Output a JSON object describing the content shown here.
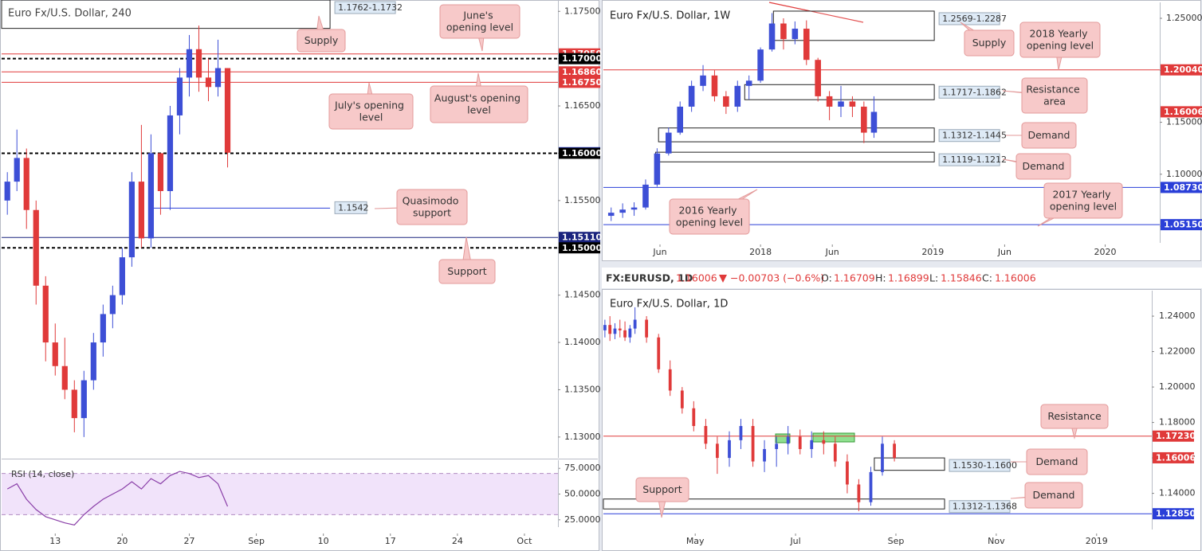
{
  "chart_data": [
    {
      "type": "candlestick",
      "title": "Euro Fx/U.S. Dollar, 240",
      "up_color": "#3d4fd6",
      "down_color": "#e03a3a",
      "x": [
        8,
        9,
        10,
        11,
        12,
        13,
        14,
        15,
        16,
        17,
        18,
        19,
        20,
        21,
        22,
        23,
        24,
        25,
        26,
        27,
        28,
        29,
        30,
        31
      ],
      "open": [
        1.155,
        1.157,
        1.1595,
        1.154,
        1.146,
        1.14,
        1.1375,
        1.135,
        1.132,
        1.136,
        1.14,
        1.143,
        1.145,
        1.149,
        1.157,
        1.151,
        1.16,
        1.156,
        1.164,
        1.168,
        1.171,
        1.168,
        1.167,
        1.169
      ],
      "high": [
        1.158,
        1.1625,
        1.1605,
        1.155,
        1.147,
        1.142,
        1.1405,
        1.136,
        1.137,
        1.141,
        1.144,
        1.146,
        1.15,
        1.158,
        1.163,
        1.162,
        1.16,
        1.165,
        1.169,
        1.1725,
        1.1735,
        1.17,
        1.172,
        1.169
      ],
      "low": [
        1.1535,
        1.156,
        1.152,
        1.144,
        1.138,
        1.1365,
        1.134,
        1.1305,
        1.13,
        1.135,
        1.1385,
        1.1415,
        1.144,
        1.148,
        1.15,
        1.15,
        1.1535,
        1.154,
        1.162,
        1.166,
        1.1665,
        1.1655,
        1.166,
        1.1585
      ],
      "close": [
        1.157,
        1.1595,
        1.154,
        1.146,
        1.14,
        1.1375,
        1.135,
        1.132,
        1.136,
        1.14,
        1.143,
        1.145,
        1.149,
        1.157,
        1.151,
        1.16,
        1.156,
        1.164,
        1.168,
        1.171,
        1.168,
        1.167,
        1.169,
        1.16006
      ],
      "xlim": [
        7.4,
        65.5
      ],
      "xticks": [
        13,
        20,
        27,
        {
          "value": 34,
          "label": "Sep"
        },
        {
          "value": 41,
          "label": "10"
        },
        {
          "value": 48,
          "label": "17"
        },
        {
          "value": 55,
          "label": "24"
        },
        {
          "value": 62,
          "label": "Oct"
        }
      ],
      "ylim": [
        1.1278,
        1.1762
      ],
      "yticks": [
        {
          "value": 1.13,
          "label": "1.13000"
        },
        {
          "value": 1.135,
          "label": "1.13500"
        },
        {
          "value": 1.14,
          "label": "1.14000"
        },
        {
          "value": 1.145,
          "label": "1.14500"
        },
        {
          "value": 1.15,
          "label": "1.15000"
        },
        {
          "value": 1.155,
          "label": "1.15500"
        },
        {
          "value": 1.16,
          "label": "1.16000"
        },
        {
          "value": 1.165,
          "label": "1.16500"
        },
        {
          "value": 1.17,
          "label": "1.17000"
        },
        {
          "value": 1.175,
          "label": "1.17500"
        }
      ],
      "levels": [
        {
          "value": 1.1705,
          "label": "1.17050",
          "color": "#e03a3a"
        },
        {
          "value": 1.17,
          "label": "1.17000",
          "color": "#000000",
          "dashed": true
        },
        {
          "value": 1.1686,
          "label": "1.16860",
          "color": "#e03a3a"
        },
        {
          "value": 1.1675,
          "label": "1.16750",
          "color": "#e03a3a"
        },
        {
          "value": 1.16006,
          "label": "1.16006",
          "color": "#2a3fd8",
          "line": false
        },
        {
          "value": 1.16,
          "label": "1.16000",
          "color": "#000000",
          "dashed": true
        },
        {
          "value": 1.1511,
          "label": "1.15110",
          "color": "#1a237e"
        },
        {
          "value": 1.15,
          "label": "1.15000",
          "color": "#000000",
          "dashed": true
        }
      ],
      "zones": [
        {
          "label": "1.1762-1.1732",
          "top": 1.1762,
          "bottom": 1.1732,
          "x": [
            7.4,
            41.7
          ]
        }
      ],
      "rays": [
        {
          "value": 1.1542,
          "label": "1.1542",
          "x": [
            23.2,
            41.7
          ],
          "color": "#2a3fd8"
        }
      ],
      "callouts": [
        "Supply",
        "June's opening level",
        "July's opening level",
        "August's opening level",
        "Quasimodo support",
        "Support"
      ],
      "rsi": {
        "title": "RSI (14, close)",
        "color": "#8a3fa8",
        "values": [
          55,
          60,
          45,
          35,
          28,
          25,
          22,
          20,
          30,
          38,
          45,
          50,
          55,
          62,
          55,
          65,
          60,
          68,
          72,
          70,
          66,
          68,
          60,
          38
        ],
        "ylim": [
          17.9,
          82.9
        ],
        "band": [
          30,
          70
        ],
        "yticks": [
          {
            "value": 25,
            "label": "25.0000"
          },
          {
            "value": 50,
            "label": "50.0000"
          },
          {
            "value": 75,
            "label": "75.0000"
          }
        ]
      }
    },
    {
      "type": "candlestick",
      "title": "Euro Fx/U.S. Dollar, 1W",
      "up_color": "#3d4fd6",
      "down_color": "#e03a3a",
      "x": [
        1.6,
        2.4,
        3.2,
        4.0,
        4.8,
        5.6,
        6.4,
        7.2,
        8.0,
        8.8,
        9.6,
        10.4,
        11.2,
        12.0,
        12.8,
        13.6,
        14.4,
        15.2,
        16.0,
        16.8,
        17.6,
        18.4,
        19.2,
        19.9
      ],
      "open": [
        1.06,
        1.063,
        1.066,
        1.068,
        1.09,
        1.12,
        1.14,
        1.165,
        1.185,
        1.195,
        1.175,
        1.165,
        1.185,
        1.19,
        1.22,
        1.245,
        1.23,
        1.24,
        1.21,
        1.175,
        1.165,
        1.17,
        1.165,
        1.14
      ],
      "high": [
        1.068,
        1.072,
        1.073,
        1.095,
        1.125,
        1.145,
        1.17,
        1.19,
        1.205,
        1.2,
        1.18,
        1.19,
        1.195,
        1.222,
        1.255,
        1.25,
        1.247,
        1.248,
        1.212,
        1.18,
        1.185,
        1.175,
        1.17,
        1.175
      ],
      "low": [
        1.055,
        1.058,
        1.06,
        1.066,
        1.088,
        1.118,
        1.138,
        1.16,
        1.18,
        1.17,
        1.158,
        1.16,
        1.172,
        1.188,
        1.218,
        1.22,
        1.225,
        1.205,
        1.17,
        1.152,
        1.155,
        1.155,
        1.13,
        1.135
      ],
      "close": [
        1.063,
        1.066,
        1.068,
        1.09,
        1.12,
        1.14,
        1.165,
        1.185,
        1.195,
        1.175,
        1.165,
        1.185,
        1.19,
        1.22,
        1.245,
        1.23,
        1.24,
        1.21,
        1.175,
        1.165,
        1.17,
        1.165,
        1.14,
        1.16
      ],
      "xlim": [
        1.06,
        39.8
      ],
      "xticks": [
        {
          "value": 5,
          "label": "Jun"
        },
        {
          "value": 12,
          "label": "2018"
        },
        {
          "value": 17,
          "label": "Jun"
        },
        {
          "value": 24,
          "label": "2019"
        },
        {
          "value": 29,
          "label": "Jun"
        },
        {
          "value": 36,
          "label": "2020"
        }
      ],
      "ylim": [
        1.034,
        1.2653
      ],
      "yticks": [
        {
          "value": 1.05,
          "label": "1.05000"
        },
        {
          "value": 1.1,
          "label": "1.10000"
        },
        {
          "value": 1.15,
          "label": "1.15000"
        },
        {
          "value": 1.2,
          "label": "1.20000"
        },
        {
          "value": 1.25,
          "label": "1.25000"
        }
      ],
      "levels": [
        {
          "value": 1.2004,
          "label": "1.20040",
          "color": "#e03a3a"
        },
        {
          "value": 1.16006,
          "label": "1.16006",
          "color": "#e03a3a",
          "line": false
        },
        {
          "value": 1.0873,
          "label": "1.08730",
          "color": "#2a3fd8"
        },
        {
          "value": 1.0515,
          "label": "1.05150",
          "color": "#2a3fd8"
        }
      ],
      "zones": [
        {
          "label": "1.2569-1.2287",
          "top": 1.2569,
          "bottom": 1.2287,
          "x": [
            12.9,
            24.1
          ]
        },
        {
          "label": "1.1717-1.1862",
          "top": 1.1862,
          "bottom": 1.1717,
          "x": [
            10.9,
            24.1
          ]
        },
        {
          "label": "1.1312-1.1445",
          "top": 1.1445,
          "bottom": 1.1312,
          "x": [
            4.9,
            24.1
          ]
        },
        {
          "label": "1.1119-1.1212",
          "top": 1.1212,
          "bottom": 1.1119,
          "x": [
            4.7,
            24.1
          ]
        }
      ],
      "callouts": [
        "Supply",
        "2018 Yearly opening level",
        "Resistance area",
        "Demand",
        "Demand",
        "2016 Yearly opening level",
        "2017 Yearly opening level"
      ]
    },
    {
      "type": "candlestick",
      "title": "Euro Fx/U.S. Dollar, 1D",
      "up_color": "#3d4fd6",
      "down_color": "#e03a3a",
      "x": [
        2.2,
        2.3,
        2.4,
        2.5,
        2.6,
        2.7,
        2.8,
        3.03,
        3.27,
        3.5,
        3.74,
        3.97,
        4.21,
        4.44,
        4.68,
        4.91,
        5.15,
        5.38,
        5.62,
        5.85,
        6.09,
        6.32,
        6.56,
        6.79,
        7.03,
        7.26,
        7.5,
        7.73,
        7.97
      ],
      "open": [
        1.232,
        1.235,
        1.23,
        1.233,
        1.232,
        1.228,
        1.233,
        1.238,
        1.228,
        1.21,
        1.198,
        1.188,
        1.178,
        1.168,
        1.16,
        1.17,
        1.178,
        1.158,
        1.165,
        1.168,
        1.172,
        1.165,
        1.17,
        1.168,
        1.158,
        1.145,
        1.135,
        1.152,
        1.168
      ],
      "high": [
        1.238,
        1.24,
        1.236,
        1.238,
        1.237,
        1.235,
        1.245,
        1.24,
        1.23,
        1.215,
        1.2,
        1.192,
        1.182,
        1.172,
        1.175,
        1.182,
        1.182,
        1.17,
        1.172,
        1.178,
        1.176,
        1.175,
        1.175,
        1.172,
        1.162,
        1.148,
        1.155,
        1.172,
        1.17
      ],
      "low": [
        1.228,
        1.226,
        1.227,
        1.228,
        1.226,
        1.225,
        1.23,
        1.225,
        1.208,
        1.195,
        1.185,
        1.175,
        1.165,
        1.151,
        1.155,
        1.165,
        1.155,
        1.152,
        1.155,
        1.162,
        1.162,
        1.16,
        1.162,
        1.155,
        1.14,
        1.13,
        1.133,
        1.15,
        1.158
      ],
      "close": [
        1.235,
        1.23,
        1.233,
        1.232,
        1.228,
        1.233,
        1.238,
        1.228,
        1.21,
        1.198,
        1.188,
        1.178,
        1.168,
        1.16,
        1.17,
        1.178,
        1.158,
        1.165,
        1.168,
        1.172,
        1.165,
        1.17,
        1.168,
        1.158,
        1.145,
        1.135,
        1.152,
        1.168,
        1.16
      ],
      "xlim": [
        2.17,
        13.1
      ],
      "xticks": [
        {
          "value": 4,
          "label": "May"
        },
        {
          "value": 6,
          "label": "Jul"
        },
        {
          "value": 8,
          "label": "Sep"
        },
        {
          "value": 10,
          "label": "Nov"
        },
        {
          "value": 12,
          "label": "2019"
        }
      ],
      "ylim": [
        1.1196,
        1.2544
      ],
      "yticks": [
        {
          "value": 1.14,
          "label": "1.14000"
        },
        {
          "value": 1.16,
          "label": "1.16000"
        },
        {
          "value": 1.18,
          "label": "1.18000"
        },
        {
          "value": 1.2,
          "label": "1.20000"
        },
        {
          "value": 1.22,
          "label": "1.22000"
        },
        {
          "value": 1.24,
          "label": "1.24000"
        }
      ],
      "levels": [
        {
          "value": 1.1723,
          "label": "1.17230",
          "color": "#e03a3a"
        },
        {
          "value": 1.16006,
          "label": "1.16006",
          "color": "#e03a3a",
          "line": false
        },
        {
          "value": 1.1285,
          "label": "1.12850",
          "color": "#2a3fd8"
        }
      ],
      "zones": [
        {
          "label": "1.1530-1.1600",
          "top": 1.16,
          "bottom": 1.153,
          "x": [
            7.57,
            8.97
          ]
        },
        {
          "label": "1.1312-1.1368",
          "top": 1.1368,
          "bottom": 1.1312,
          "x": [
            2.17,
            8.97
          ]
        }
      ],
      "callouts": [
        "Resistance",
        "Demand",
        "Support",
        "Demand"
      ]
    }
  ],
  "info_bar": {
    "symbol": "FX:EURUSD, 1D",
    "last": "1.16006",
    "change": "−0.00703 (−0.6%)",
    "open_label": "O:",
    "open": "1.16709",
    "high_label": "H:",
    "high": "1.16899",
    "low_label": "L:",
    "low": "1.15846",
    "close_label": "C:",
    "close": "1.16006"
  }
}
